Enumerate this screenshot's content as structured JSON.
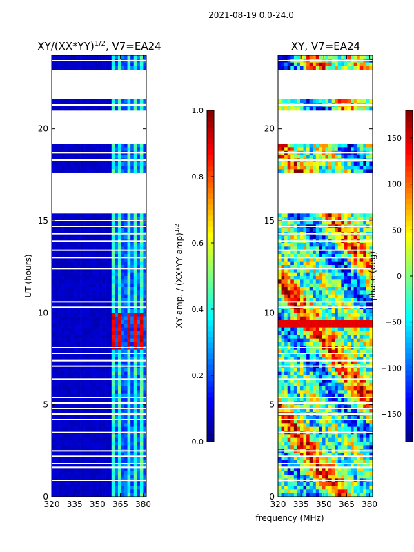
{
  "suptitle": "2021-08-19 0.0-24.0",
  "xlabel": "frequency (MHz)",
  "colormap": [
    "#00007f",
    "#0000ff",
    "#007fff",
    "#00ffff",
    "#7fff7f",
    "#ffff00",
    "#ff7f00",
    "#ff0000",
    "#7f0000"
  ],
  "gap_color": "#ffffff",
  "frame_color": "#000000",
  "chart_data": [
    {
      "type": "heatmap",
      "title_main": "XY/(XX*YY)",
      "title_sup": "1/2",
      "title_rest": ", V7=EA24",
      "ylabel": "UT (hours)",
      "xlim": [
        320,
        382
      ],
      "ylim": [
        0,
        24
      ],
      "xticks": [
        320,
        335,
        350,
        365,
        380
      ],
      "yticks": [
        0,
        5,
        10,
        15,
        20
      ],
      "colorbar": {
        "label": "XY amp. / (XX*YY amp)",
        "label_sup": "1/2",
        "range": [
          0.0,
          1.0
        ],
        "ticks": [
          "0.0",
          "0.2",
          "0.4",
          "0.6",
          "0.8",
          "1.0"
        ]
      },
      "data_windows_hours": [
        [
          0,
          9.0
        ],
        [
          9.0,
          10.3
        ],
        [
          10.3,
          15.3
        ],
        [
          17.7,
          19.1
        ],
        [
          21.0,
          21.6
        ],
        [
          23.3,
          24.0
        ]
      ],
      "gap_lines_hours": [
        0.9,
        1.6,
        1.8,
        2.2,
        2.5,
        3.5,
        4.2,
        4.5,
        4.8,
        5.1,
        5.4,
        6.4,
        7.1,
        7.4,
        7.8,
        8.1,
        10.3,
        10.6,
        12.4,
        13.0,
        13.4,
        13.9,
        14.3,
        14.7,
        15.0,
        18.3,
        18.7,
        21.3,
        23.7
      ],
      "background_level": 0.05,
      "active_band_mhz": [
        359,
        382
      ],
      "active_level": 0.35,
      "rfi_burst_hours": [
        8.0,
        10.0
      ],
      "rfi_burst_level": 0.85
    },
    {
      "type": "heatmap",
      "title_main": "XY, V7=EA24",
      "ylabel": "",
      "xlim": [
        320,
        382
      ],
      "ylim": [
        0,
        24
      ],
      "xticks": [
        320,
        335,
        350,
        365,
        380
      ],
      "yticks": [
        0,
        5,
        10,
        15,
        20
      ],
      "colorbar": {
        "label": "phase (deg)",
        "range": [
          -180,
          180
        ],
        "ticks": [
          "−150",
          "−100",
          "−50",
          "0",
          "50",
          "100",
          "150"
        ],
        "tick_values": [
          -150,
          -100,
          -50,
          0,
          50,
          100,
          150
        ]
      },
      "data_windows_hours": [
        [
          0,
          9.0
        ],
        [
          9.0,
          10.3
        ],
        [
          10.3,
          15.3
        ],
        [
          17.7,
          19.1
        ],
        [
          21.0,
          21.6
        ],
        [
          23.3,
          24.0
        ]
      ],
      "gap_lines_hours": [
        0.9,
        1.6,
        1.8,
        2.2,
        2.5,
        3.5,
        4.2,
        4.5,
        4.8,
        5.1,
        5.4,
        6.4,
        7.1,
        7.4,
        7.8,
        8.1,
        10.3,
        10.6,
        12.4,
        13.0,
        13.4,
        13.9,
        14.3,
        14.7,
        15.0,
        18.3,
        18.7,
        21.3,
        23.7
      ],
      "value_range_deg": [
        -180,
        180
      ],
      "noisy": true
    }
  ]
}
